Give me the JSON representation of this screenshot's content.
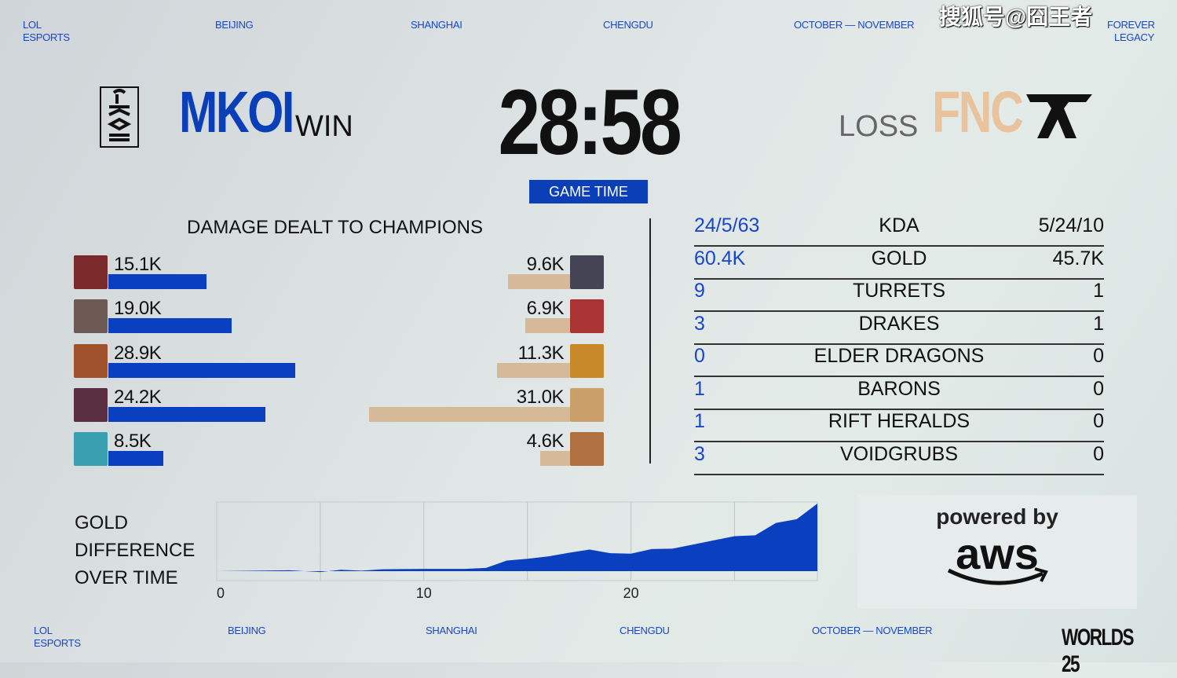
{
  "top_nav": {
    "brand": [
      "LOL",
      "ESPORTS"
    ],
    "items": [
      "BEIJING",
      "SHANGHAI",
      "CHENGDU",
      "OCTOBER — NOVEMBER"
    ],
    "right": [
      "FOREVER",
      "LEGACY"
    ],
    "watermark": "搜狐号@囧王者"
  },
  "bottom_nav": {
    "brand": [
      "LOL",
      "ESPORTS"
    ],
    "items": [
      "BEIJING",
      "SHANGHAI",
      "CHENGDU",
      "OCTOBER — NOVEMBER"
    ],
    "logo": "WORLDS 25"
  },
  "teams": {
    "left": {
      "name": "MKOI",
      "result": "WIN",
      "color": "#0a3fb8"
    },
    "right": {
      "name": "FNC",
      "result": "LOSS",
      "color": "#e8c39e"
    }
  },
  "game_time": {
    "value": "28:58",
    "label": "GAME TIME"
  },
  "damage": {
    "title": "DAMAGE DEALT TO CHAMPIONS",
    "left": [
      {
        "label": "15.1K",
        "value": 15.1
      },
      {
        "label": "19.0K",
        "value": 19.0
      },
      {
        "label": "28.9K",
        "value": 28.9
      },
      {
        "label": "24.2K",
        "value": 24.2
      },
      {
        "label": "8.5K",
        "value": 8.5
      }
    ],
    "right": [
      {
        "label": "9.6K",
        "value": 9.6
      },
      {
        "label": "6.9K",
        "value": 6.9
      },
      {
        "label": "11.3K",
        "value": 11.3
      },
      {
        "label": "31.0K",
        "value": 31.0
      },
      {
        "label": "4.6K",
        "value": 4.6
      }
    ]
  },
  "stats": [
    {
      "left": "24/5/63",
      "label": "KDA",
      "right": "5/24/10"
    },
    {
      "left": "60.4K",
      "label": "GOLD",
      "right": "45.7K"
    },
    {
      "left": "9",
      "label": "TURRETS",
      "right": "1"
    },
    {
      "left": "3",
      "label": "DRAKES",
      "right": "1"
    },
    {
      "left": "0",
      "label": "ELDER DRAGONS",
      "right": "0"
    },
    {
      "left": "1",
      "label": "BARONS",
      "right": "0"
    },
    {
      "left": "1",
      "label": "RIFT HERALDS",
      "right": "0"
    },
    {
      "left": "3",
      "label": "VOIDGRUBS",
      "right": "0"
    }
  ],
  "gold_chart": {
    "title_lines": [
      "GOLD",
      "DIFFERENCE",
      "OVER TIME"
    ]
  },
  "chart_data": {
    "type": "area",
    "title": "GOLD DIFFERENCE OVER TIME",
    "xlim": [
      0,
      29
    ],
    "x_ticks": [
      "0",
      "10",
      "20"
    ],
    "grid": "vertical every 5",
    "x": [
      0,
      2,
      3.5,
      5,
      6,
      7,
      8,
      10,
      12,
      13,
      14,
      15,
      16,
      17,
      18,
      19,
      20,
      21,
      22,
      23,
      24,
      25,
      26,
      27,
      28,
      29
    ],
    "y": [
      0,
      0.1,
      0.2,
      -0.2,
      0.3,
      0.1,
      0.4,
      0.5,
      0.5,
      0.7,
      2.3,
      2.7,
      3.2,
      4.0,
      4.7,
      3.9,
      3.8,
      4.8,
      4.9,
      5.8,
      6.7,
      7.6,
      7.8,
      10.5,
      11.3,
      14.7
    ],
    "color": "#0a3fc0"
  },
  "sponsor": {
    "line1": "powered by",
    "line2": "aws"
  }
}
